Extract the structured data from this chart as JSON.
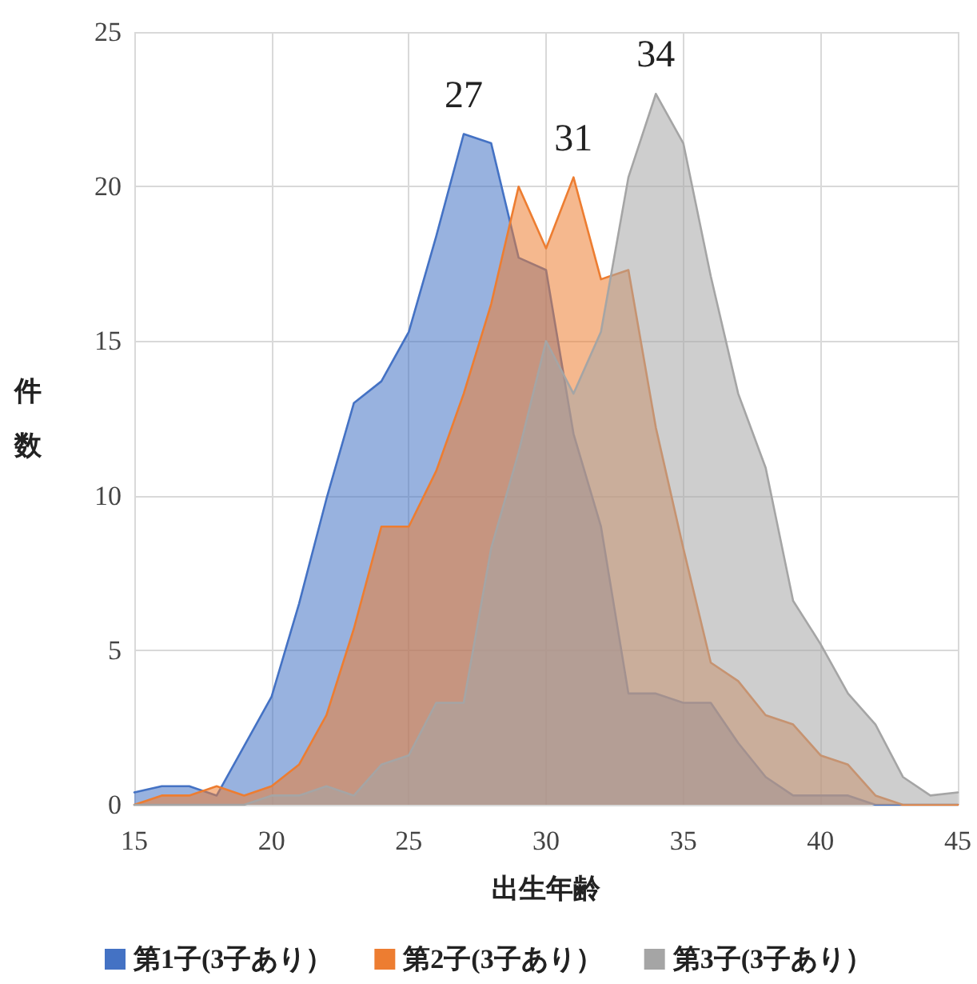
{
  "chart_data": {
    "type": "area",
    "xlabel": "出生年齢",
    "ylabel": "件数",
    "x": [
      15,
      16,
      17,
      18,
      19,
      20,
      21,
      22,
      23,
      24,
      25,
      26,
      27,
      28,
      29,
      30,
      31,
      32,
      33,
      34,
      35,
      36,
      37,
      38,
      39,
      40,
      41,
      42,
      43,
      44,
      45
    ],
    "series": [
      {
        "name": "第1子(3子あり）",
        "color": "#4472c4",
        "values": [
          0.4,
          0.6,
          0.6,
          0.3,
          1.9,
          3.5,
          6.5,
          9.9,
          13,
          13.7,
          15.3,
          18.4,
          21.7,
          21.4,
          17.7,
          17.3,
          12,
          9,
          3.6,
          3.6,
          3.3,
          3.3,
          2,
          0.9,
          0.3,
          0.3,
          0.3,
          0,
          0,
          0,
          0
        ]
      },
      {
        "name": "第2子(3子あり）",
        "color": "#ed7d31",
        "values": [
          0,
          0.3,
          0.3,
          0.6,
          0.3,
          0.6,
          1.3,
          2.9,
          5.7,
          9,
          9,
          10.8,
          13.3,
          16.2,
          20,
          18,
          20.3,
          17,
          17.3,
          12.2,
          8.3,
          4.6,
          4,
          2.9,
          2.6,
          1.6,
          1.3,
          0.3,
          0,
          0,
          0
        ]
      },
      {
        "name": "第3子(3子あり）",
        "color": "#a5a5a5",
        "values": [
          0,
          0,
          0,
          0,
          0,
          0.3,
          0.3,
          0.6,
          0.3,
          1.3,
          1.6,
          3.3,
          3.3,
          8.3,
          11.4,
          15,
          13.3,
          15.3,
          20.3,
          23,
          21.4,
          17.1,
          13.3,
          10.9,
          6.6,
          5.2,
          3.6,
          2.6,
          0.9,
          0.3,
          0.4
        ]
      }
    ],
    "annotations": [
      {
        "text": "27",
        "x": 27,
        "y": 21.7
      },
      {
        "text": "31",
        "x": 31,
        "y": 20.3
      },
      {
        "text": "34",
        "x": 34,
        "y": 23
      }
    ],
    "xlim": [
      15,
      45
    ],
    "xticks": [
      15,
      20,
      25,
      30,
      35,
      40,
      45
    ],
    "ylim": [
      0,
      25
    ],
    "yticks": [
      0,
      5,
      10,
      15,
      20,
      25
    ],
    "grid": true,
    "legend": "bottom",
    "marker": "none",
    "line_style": "solid"
  }
}
